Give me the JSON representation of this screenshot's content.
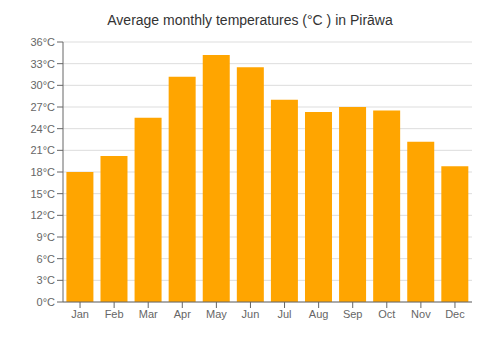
{
  "chart_data": {
    "type": "bar",
    "title": "Average monthly temperatures (°C ) in Pirāwa",
    "categories": [
      "Jan",
      "Feb",
      "Mar",
      "Apr",
      "May",
      "Jun",
      "Jul",
      "Aug",
      "Sep",
      "Oct",
      "Nov",
      "Dec"
    ],
    "values": [
      18.0,
      20.2,
      25.5,
      31.2,
      34.2,
      32.5,
      28.0,
      26.3,
      27.0,
      26.5,
      22.2,
      18.8
    ],
    "color": "#FFA500",
    "ylim": [
      0,
      36
    ],
    "yticks": [
      {
        "value": 0,
        "label": "0°C"
      },
      {
        "value": 3,
        "label": "3°C"
      },
      {
        "value": 6,
        "label": "6°C"
      },
      {
        "value": 9,
        "label": "9°C"
      },
      {
        "value": 12,
        "label": "12°C"
      },
      {
        "value": 15,
        "label": "15°C"
      },
      {
        "value": 18,
        "label": "18°C"
      },
      {
        "value": 21,
        "label": "21°C"
      },
      {
        "value": 24,
        "label": "24°C"
      },
      {
        "value": 27,
        "label": "27°C"
      },
      {
        "value": 30,
        "label": "30°C"
      },
      {
        "value": 33,
        "label": "33°C"
      },
      {
        "value": 36,
        "label": "36°C"
      }
    ],
    "grid": true
  }
}
